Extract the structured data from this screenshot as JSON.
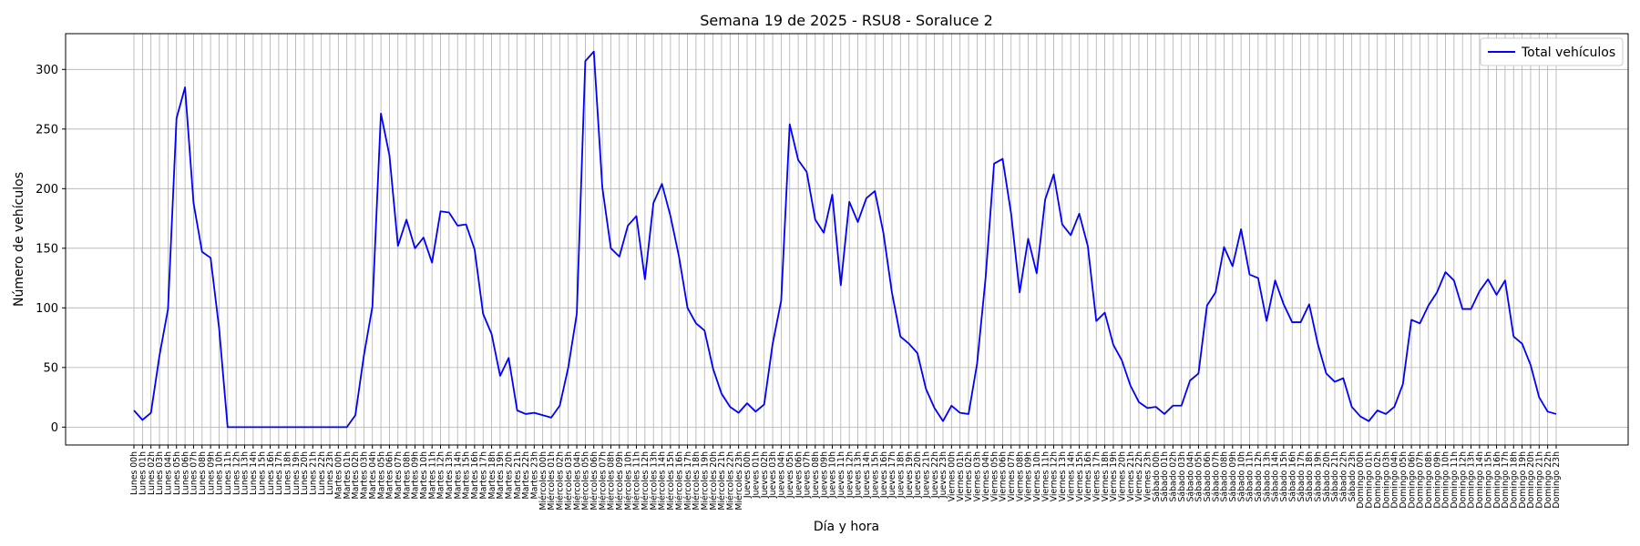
{
  "chart_data": {
    "type": "line",
    "title": "Semana 19 de 2025 - RSU8 - Soraluce 2",
    "xlabel": "Día y hora",
    "ylabel": "Número de vehículos",
    "ylim": [
      -15,
      330
    ],
    "yticks": [
      0,
      50,
      100,
      150,
      200,
      250,
      300
    ],
    "grid": true,
    "legend_position": "top-right",
    "days": [
      "Lunes",
      "Martes",
      "Miércoles",
      "Jueves",
      "Viernes",
      "Sábado",
      "Domingo"
    ],
    "hour_suffix": "h",
    "series": [
      {
        "name": "Total vehículos",
        "color": "#0000ff",
        "values": [
          14,
          6,
          12,
          60,
          99,
          259,
          285,
          188,
          147,
          142,
          83,
          0,
          0,
          0,
          0,
          0,
          0,
          0,
          0,
          0,
          0,
          0,
          0,
          0,
          0,
          0,
          10,
          60,
          101,
          263,
          228,
          152,
          174,
          150,
          159,
          138,
          181,
          180,
          169,
          170,
          149,
          95,
          78,
          43,
          58,
          14,
          11,
          12,
          10,
          8,
          18,
          50,
          95,
          307,
          315,
          201,
          150,
          143,
          169,
          177,
          124,
          188,
          204,
          177,
          143,
          100,
          87,
          81,
          49,
          28,
          17,
          12,
          20,
          13,
          19,
          70,
          106,
          254,
          224,
          214,
          174,
          163,
          195,
          119,
          189,
          172,
          192,
          198,
          163,
          113,
          76,
          70,
          62,
          32,
          16,
          5,
          18,
          12,
          11,
          53,
          125,
          221,
          225,
          179,
          113,
          158,
          129,
          191,
          212,
          170,
          161,
          179,
          152,
          89,
          96,
          69,
          56,
          35,
          21,
          16,
          17,
          11,
          18,
          18,
          39,
          45,
          102,
          113,
          151,
          135,
          166,
          128,
          125,
          89,
          123,
          103,
          88,
          88,
          103,
          70,
          45,
          38,
          41,
          17,
          9,
          5,
          14,
          11,
          17,
          36,
          90,
          87,
          102,
          113,
          130,
          123,
          99,
          99,
          114,
          124,
          111,
          123,
          76,
          70,
          52,
          25,
          13,
          11
        ]
      }
    ]
  }
}
